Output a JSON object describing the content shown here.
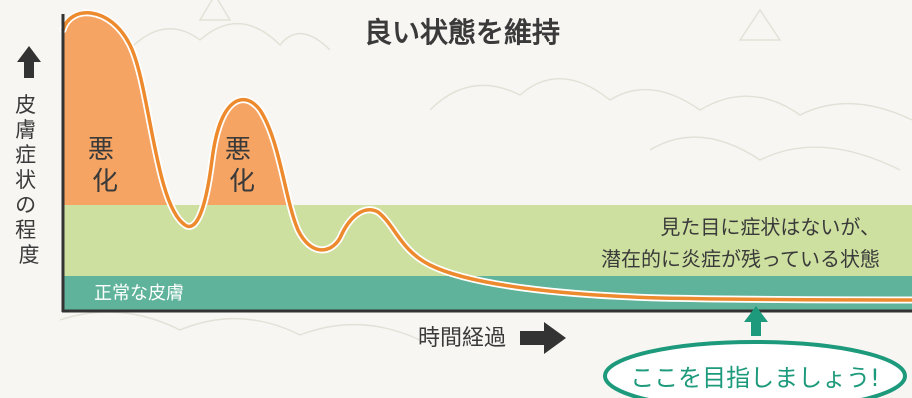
{
  "title": "良い状態を維持",
  "y_axis": {
    "label_chars": [
      "皮",
      "膚",
      "症",
      "状",
      "の",
      "程",
      "度"
    ]
  },
  "x_axis": {
    "label": "時間経過"
  },
  "flare_label_chars": [
    "悪",
    "化"
  ],
  "zones": {
    "normal_label": "正常な皮膚",
    "subclinical_line1": "見た目に症状はないが、",
    "subclinical_line2": "潜在的に炎症が残っている状態"
  },
  "goal": {
    "label": "ここを目指しましょう!"
  },
  "colors": {
    "flare": "#f5a463",
    "subclinical": "#cde0a0",
    "normal": "#5fb39b",
    "curve": "#ed8a2e",
    "axis": "#333333",
    "goal": "#1d9a7c",
    "text": "#3a3a3a"
  }
}
